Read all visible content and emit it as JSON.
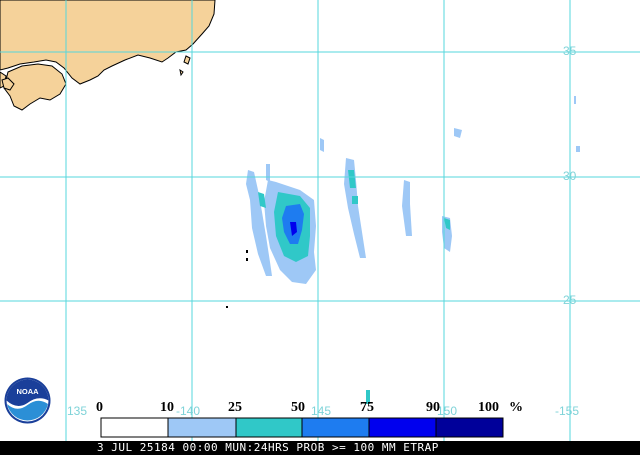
{
  "map": {
    "grid_latitudes": [
      "35",
      "30",
      "25"
    ],
    "grid_longitudes": [
      "135",
      "-140",
      "145",
      "150",
      "-155"
    ],
    "land_color": "#f5d29a",
    "grid_color": "#55d7dc"
  },
  "legend": {
    "ticks": [
      "0",
      "10",
      "25",
      "50",
      "75",
      "90",
      "100"
    ],
    "unit": "%",
    "bins": [
      {
        "range": "0-10",
        "color": "#ffffff"
      },
      {
        "range": "10-25",
        "color": "#9ec8f6"
      },
      {
        "range": "25-50",
        "color": "#30c8c8"
      },
      {
        "range": "50-75",
        "color": "#1e7cf0"
      },
      {
        "range": "75-90",
        "color": "#0000ee"
      },
      {
        "range": "90-100",
        "color": "#00009a"
      }
    ]
  },
  "footer": {
    "caption": "3 JUL 25184 00:00 MUN:24HRS PROB >= 100 MM ETRAP"
  },
  "logo": {
    "text": "NOAA",
    "icon": "noaa-logo-icon"
  }
}
